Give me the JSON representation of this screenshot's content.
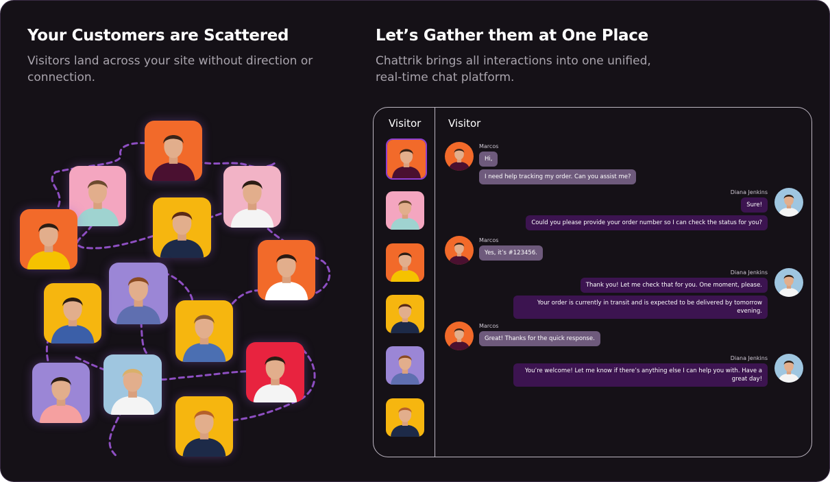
{
  "left": {
    "title": "Your Customers are Scattered",
    "subtitle": "Visitors land across your site without direction or connection."
  },
  "right": {
    "title": "Let’s Gather them at One Place",
    "subtitle": "Chattrik brings all interactions into one unified, real-time chat platform."
  },
  "chat": {
    "sidebar_header": "Visitor",
    "main_header": "Visitor",
    "messages": [
      {
        "sender": "Marcos",
        "bubbles": [
          "Hi,",
          "I need help tracking my order. Can you assist me?"
        ]
      },
      {
        "sender": "Diana Jenkins",
        "bubbles": [
          "Sure!",
          "Could you please provide your order number so I can check the status for you?"
        ]
      },
      {
        "sender": "Marcos",
        "bubbles": [
          "Yes, it’s #123456."
        ]
      },
      {
        "sender": "Diana Jenkins",
        "bubbles": [
          "Thank you! Let me check that for you. One moment, please.",
          "Your order is currently in transit and is expected to be delivered by tomorrow evening."
        ]
      },
      {
        "sender": "Marcos",
        "bubbles": [
          "Great! Thanks for the quick response."
        ]
      },
      {
        "sender": "Diana Jenkins",
        "bubbles": [
          "You’re welcome! Let me know if there’s anything else I can help you with. Have a great day!"
        ]
      }
    ]
  }
}
